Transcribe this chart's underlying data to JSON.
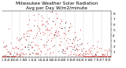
{
  "title": "Milwaukee Weather Solar Radiation",
  "subtitle": "Avg per Day W/m2/minute",
  "title_fontsize": 4.2,
  "background_color": "#ffffff",
  "dot_color_main": "#cc0000",
  "dot_color_secondary": "#000000",
  "ylim": [
    0,
    8.5
  ],
  "ytick_values": [
    1,
    2,
    3,
    4,
    5,
    6,
    7,
    8
  ],
  "ylabel_fontsize": 3.0,
  "xlabel_fontsize": 2.5,
  "num_points": 365,
  "grid_color": "#999999",
  "dot_size": 0.5,
  "seed": 12345
}
